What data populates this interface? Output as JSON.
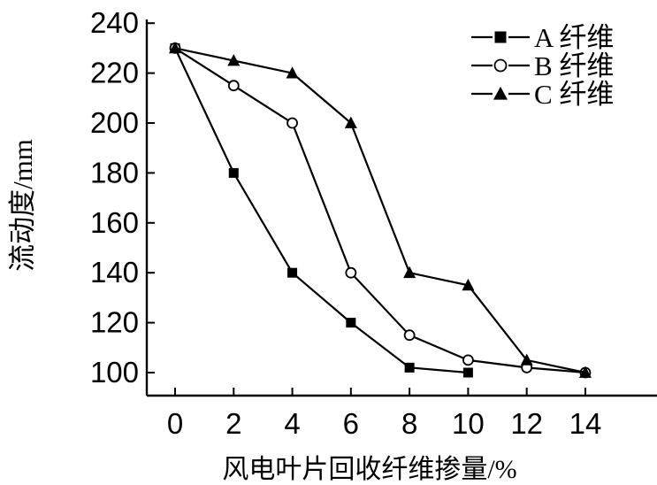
{
  "chart_data": {
    "type": "line",
    "title": "",
    "xlabel": "风电叶片回收纤维掺量/%",
    "ylabel": "流动度/mm",
    "x_ticks": [
      0,
      2,
      4,
      6,
      8,
      10,
      12,
      14
    ],
    "y_ticks": [
      100,
      120,
      140,
      160,
      180,
      200,
      220,
      240
    ],
    "xlim": [
      -1,
      16.4
    ],
    "ylim": [
      90,
      243
    ],
    "grid": false,
    "legend_position": "top-right-inside",
    "series": [
      {
        "name": "A 纤维",
        "marker": "filled-square",
        "color": "#000000",
        "x": [
          0,
          2,
          4,
          6,
          8,
          10
        ],
        "y": [
          230,
          180,
          140,
          120,
          102,
          100
        ]
      },
      {
        "name": "B 纤维",
        "marker": "open-circle",
        "color": "#000000",
        "x": [
          0,
          2,
          4,
          6,
          8,
          10,
          12,
          14
        ],
        "y": [
          230,
          215,
          200,
          140,
          115,
          105,
          102,
          100
        ]
      },
      {
        "name": "C 纤维",
        "marker": "filled-triangle",
        "color": "#000000",
        "x": [
          0,
          2,
          4,
          6,
          8,
          10,
          12,
          14
        ],
        "y": [
          230,
          225,
          220,
          200,
          140,
          135,
          105,
          100
        ]
      }
    ]
  },
  "colors": {
    "foreground": "#000000",
    "background": "#ffffff"
  }
}
